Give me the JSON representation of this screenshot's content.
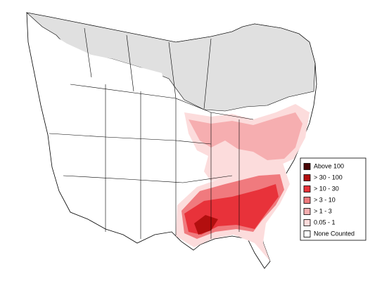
{
  "legend": {
    "items": [
      {
        "label": "Above 100",
        "color": "#4a0606"
      },
      {
        "label": "> 30 - 100",
        "color": "#b30f0f"
      },
      {
        "label": "> 10 - 30",
        "color": "#e8323a"
      },
      {
        "label": "> 3 - 10",
        "color": "#f07a7e"
      },
      {
        "label": "> 1 - 3",
        "color": "#f6aeb0"
      },
      {
        "label": "0.05 - 1",
        "color": "#fcdcdc"
      },
      {
        "label": "None Counted",
        "color": "#ffffff"
      }
    ]
  }
}
